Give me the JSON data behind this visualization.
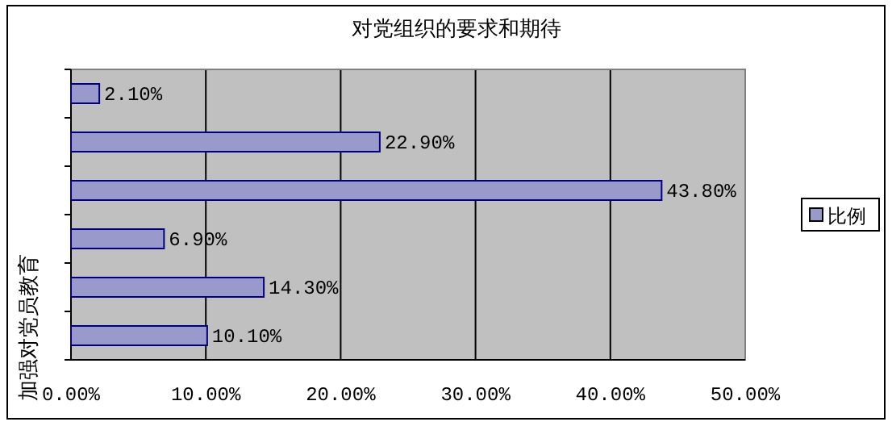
{
  "chart_data": {
    "type": "bar",
    "orientation": "horizontal",
    "title": "对党组织的要求和期待",
    "categories": [
      null,
      null,
      null,
      null,
      null,
      "加强对党员教育"
    ],
    "series": [
      {
        "name": "比例",
        "color": "#9999cc",
        "values": [
          2.1,
          22.9,
          43.8,
          6.9,
          14.3,
          10.1
        ],
        "value_labels": [
          "2.10%",
          "22.90%",
          "43.80%",
          "6.90%",
          "14.30%",
          "10.10%"
        ]
      }
    ],
    "xlim": [
      0,
      50
    ],
    "xticks": [
      {
        "value": 0,
        "label": "0.00%"
      },
      {
        "value": 10,
        "label": "10.00%"
      },
      {
        "value": 20,
        "label": "20.00%"
      },
      {
        "value": 30,
        "label": "30.00%"
      },
      {
        "value": 40,
        "label": "40.00%"
      },
      {
        "value": 50,
        "label": "50.00%"
      }
    ],
    "grid": "x",
    "legend": "right"
  }
}
